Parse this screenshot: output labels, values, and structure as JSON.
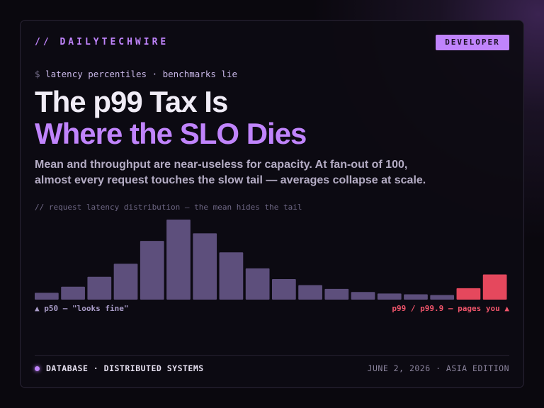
{
  "header": {
    "brand": "// DAILYTECHWIRE",
    "badge": "DEVELOPER"
  },
  "kicker": {
    "prompt": "$",
    "text": "latency percentiles · benchmarks lie"
  },
  "title": {
    "line1": "The p99 Tax Is",
    "line2": "Where the SLO Dies"
  },
  "subtitle": "Mean and throughput are near-useless for capacity. At fan-out of 100, almost every request touches the slow tail — averages collapse at scale.",
  "chart_data": {
    "type": "bar",
    "caption": "// request latency distribution — the mean hides the tail",
    "values": [
      9,
      17,
      30,
      47,
      77,
      105,
      87,
      62,
      41,
      27,
      19,
      14,
      10,
      8,
      7,
      6,
      15,
      33
    ],
    "colors": [
      "#5d4f7c",
      "#5d4f7c",
      "#5d4f7c",
      "#5d4f7c",
      "#5d4f7c",
      "#5d4f7c",
      "#5d4f7c",
      "#5d4f7c",
      "#5d4f7c",
      "#5d4f7c",
      "#5d4f7c",
      "#5d4f7c",
      "#5d4f7c",
      "#5d4f7c",
      "#5d4f7c",
      "#5d4f7c",
      "#e5485d",
      "#e5485d"
    ],
    "ylim": [
      0,
      105
    ],
    "annotations": {
      "left": "▲ p50 — \"looks fine\"",
      "right": "p99 / p99.9 — pages you ▲"
    }
  },
  "footer": {
    "topic": "DATABASE · DISTRIBUTED SYSTEMS",
    "date": "JUNE 2, 2026 · ASIA EDITION"
  }
}
